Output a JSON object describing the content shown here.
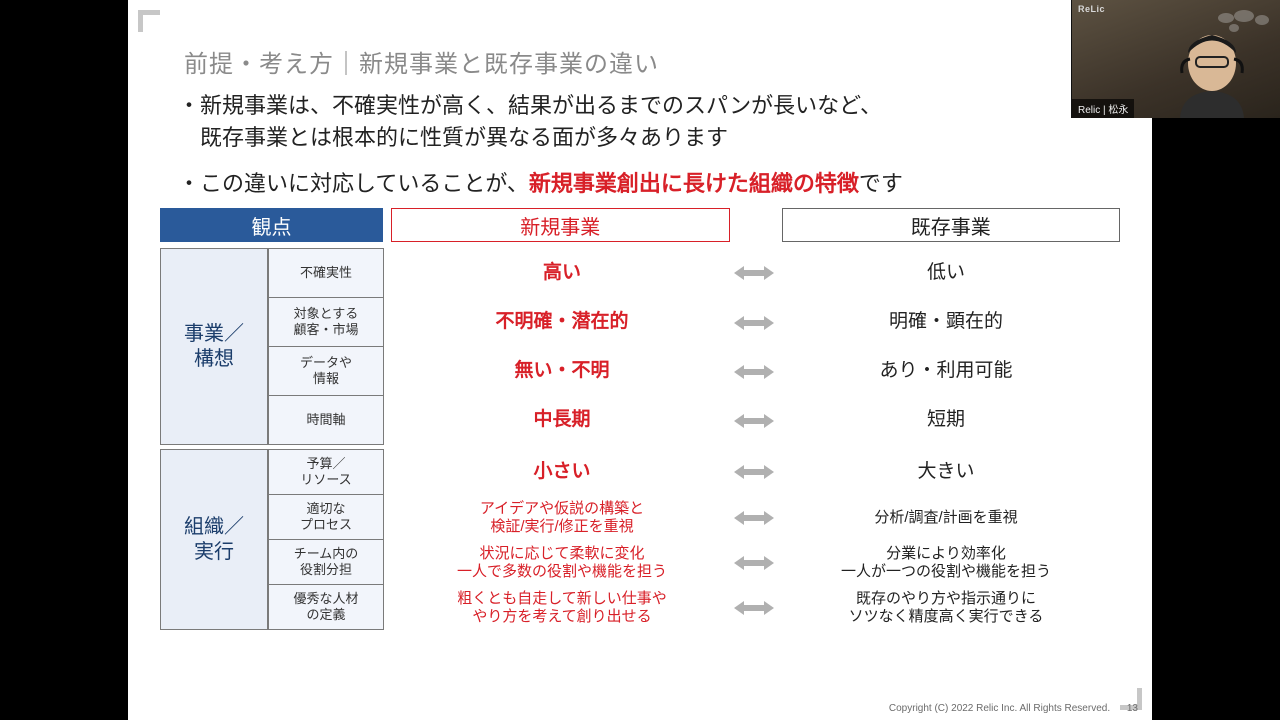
{
  "slide": {
    "title": "前提・考え方｜新規事業と既存事業の違い",
    "bullet1a": "新規事業は、不確実性が高く、結果が出るまでのスパンが長いなど、",
    "bullet1b": "既存事業とは根本的に性質が異なる面が多々あります",
    "bullet2a": "この違いに対応していることが、",
    "bullet2b": "新規事業創出に長けた組織の特徴",
    "bullet2c": "です"
  },
  "headers": {
    "viewpoint": "観点",
    "newbiz": "新規事業",
    "oldbiz": "既存事業"
  },
  "groups": [
    {
      "label": "事業／\n構想",
      "rows": [
        {
          "sub": "不確実性",
          "new": "高い",
          "old": "低い",
          "h": 50,
          "small": false
        },
        {
          "sub": "対象とする\n顧客・市場",
          "new": "不明確・潜在的",
          "old": "明確・顕在的",
          "h": 50,
          "small": false
        },
        {
          "sub": "データや\n情報",
          "new": "無い・不明",
          "old": "あり・利用可能",
          "h": 50,
          "small": false
        },
        {
          "sub": "時間軸",
          "new": "中長期",
          "old": "短期",
          "h": 50,
          "small": false
        }
      ]
    },
    {
      "label": "組織／\n実行",
      "rows": [
        {
          "sub": "予算／\nリソース",
          "new": "小さい",
          "old": "大きい",
          "h": 46,
          "small": false
        },
        {
          "sub": "適切な\nプロセス",
          "new": "アイデアや仮説の構築と\n検証/実行/修正を重視",
          "old": "分析/調査/計画を重視",
          "h": 46,
          "small": true
        },
        {
          "sub": "チーム内の\n役割分担",
          "new": "状況に応じて柔軟に変化\n一人で多数の役割や機能を担う",
          "old": "分業により効率化\n一人が一つの役割や機能を担う",
          "h": 46,
          "small": true
        },
        {
          "sub": "優秀な人材\nの定義",
          "new": "粗くとも自走して新しい仕事や\nやり方を考えて創り出せる",
          "old": "既存のやり方や指示通りに\nソツなく精度高く実行できる",
          "h": 46,
          "small": true
        }
      ]
    }
  ],
  "colors": {
    "accent_red": "#d82028",
    "header_blue": "#2a5a9a",
    "group_bg": "#e9eef7",
    "sub_bg": "#f2f5fb",
    "arrow": "#b0b0b0"
  },
  "footer": {
    "copyright": "Copyright (C) 2022 Relic Inc. All Rights Reserved.",
    "page": "13"
  },
  "webcam": {
    "brand": "ReLic",
    "name": "Relic | 松永"
  }
}
